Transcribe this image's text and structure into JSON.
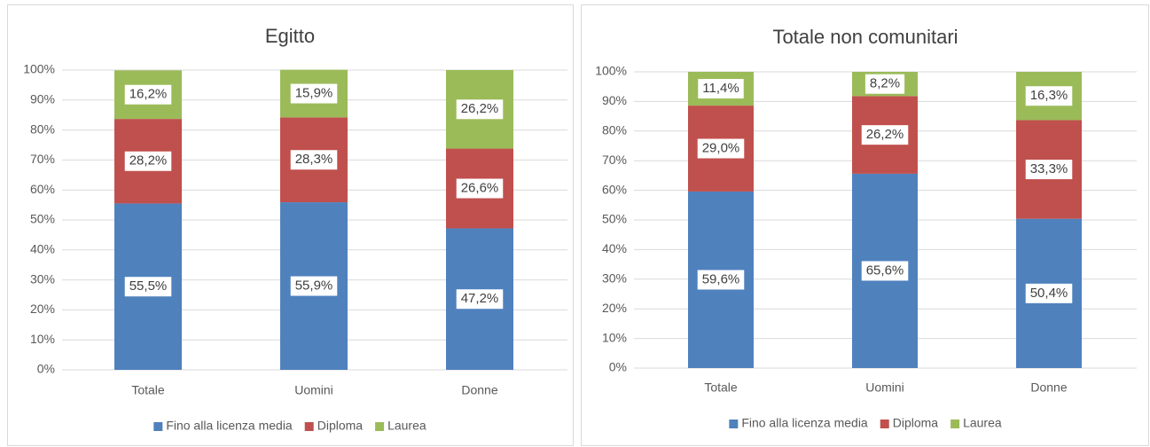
{
  "chart_data": [
    {
      "type": "bar",
      "stacked": true,
      "title": "Egitto",
      "categories": [
        "Totale",
        "Uomini",
        "Donne"
      ],
      "series": [
        {
          "name": "Fino alla licenza media",
          "color": "#4f81bd",
          "values": [
            55.5,
            55.9,
            47.2
          ],
          "value_labels": [
            "55,5%",
            "55,9%",
            "47,2%"
          ]
        },
        {
          "name": "Diploma",
          "color": "#c0504d",
          "values": [
            28.2,
            28.3,
            26.6
          ],
          "value_labels": [
            "28,2%",
            "28,3%",
            "26,6%"
          ]
        },
        {
          "name": "Laurea",
          "color": "#9bbb59",
          "values": [
            16.2,
            15.9,
            26.2
          ],
          "value_labels": [
            "16,2%",
            "15,9%",
            "26,2%"
          ]
        }
      ],
      "ylim": [
        0,
        100
      ],
      "yticks": [
        {
          "value": 0,
          "label": "0%"
        },
        {
          "value": 10,
          "label": "10%"
        },
        {
          "value": 20,
          "label": "20%"
        },
        {
          "value": 30,
          "label": "30%"
        },
        {
          "value": 40,
          "label": "40%"
        },
        {
          "value": 50,
          "label": "50%"
        },
        {
          "value": 60,
          "label": "60%"
        },
        {
          "value": 70,
          "label": "70%"
        },
        {
          "value": 80,
          "label": "80%"
        },
        {
          "value": 90,
          "label": "90%"
        },
        {
          "value": 100,
          "label": "100%"
        }
      ],
      "grid": true,
      "legend": "bottom"
    },
    {
      "type": "bar",
      "stacked": true,
      "title": "Totale non comunitari",
      "categories": [
        "Totale",
        "Uomini",
        "Donne"
      ],
      "series": [
        {
          "name": "Fino alla licenza media",
          "color": "#4f81bd",
          "values": [
            59.6,
            65.6,
            50.4
          ],
          "value_labels": [
            "59,6%",
            "65,6%",
            "50,4%"
          ]
        },
        {
          "name": "Diploma",
          "color": "#c0504d",
          "values": [
            29.0,
            26.2,
            33.3
          ],
          "value_labels": [
            "29,0%",
            "26,2%",
            "33,3%"
          ]
        },
        {
          "name": "Laurea",
          "color": "#9bbb59",
          "values": [
            11.4,
            8.2,
            16.3
          ],
          "value_labels": [
            "11,4%",
            "8,2%",
            "16,3%"
          ]
        }
      ],
      "ylim": [
        0,
        100
      ],
      "yticks": [
        {
          "value": 0,
          "label": "0%"
        },
        {
          "value": 10,
          "label": "10%"
        },
        {
          "value": 20,
          "label": "20%"
        },
        {
          "value": 30,
          "label": "30%"
        },
        {
          "value": 40,
          "label": "40%"
        },
        {
          "value": 50,
          "label": "50%"
        },
        {
          "value": 60,
          "label": "60%"
        },
        {
          "value": 70,
          "label": "70%"
        },
        {
          "value": 80,
          "label": "80%"
        },
        {
          "value": 90,
          "label": "90%"
        },
        {
          "value": 100,
          "label": "100%"
        }
      ],
      "grid": true,
      "legend": "bottom"
    }
  ]
}
